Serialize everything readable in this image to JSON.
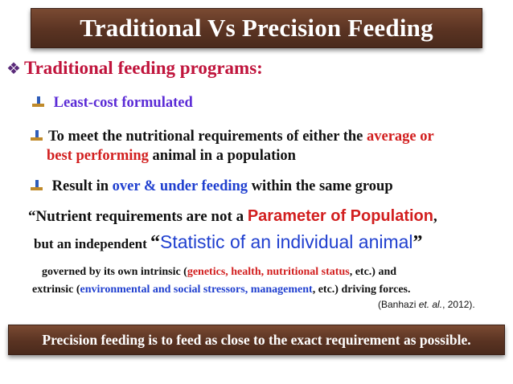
{
  "title": "Traditional Vs Precision Feeding",
  "heading": "Traditional feeding programs:",
  "bullets": {
    "b1": "Least-cost formulated",
    "b2_a": "To meet the nutritional requirements of either the ",
    "b2_red1": "average or",
    "b2_red2": "best performing",
    "b2_b": " animal in a population",
    "b3_a": "Result in ",
    "b3_blue": "over & under feeding",
    "b3_b": " within the same group"
  },
  "quote": {
    "line1_a": "“Nutrient requirements are not a ",
    "line1_red": "Parameter of Population",
    "line1_end": ",",
    "line2_a": "but an independent ",
    "line2_open": "“",
    "line2_blue": "Statistic of an individual animal",
    "line2_close": "”"
  },
  "governed": {
    "l1_a": "governed by its own intrinsic (",
    "l1_red": "genetics, health, nutritional status",
    "l1_b": ", etc.) and",
    "l2_a": "extrinsic (",
    "l2_blue": "environmental and social stressors, management",
    "l2_b": ", etc.) driving forces."
  },
  "reference": {
    "a": "(Banhazi ",
    "italic": "et. al.",
    "b": ", 2012)."
  },
  "bottom": "Precision feeding is to feed as close to the exact requirement as possible.",
  "colors": {
    "bar": "#5a3322",
    "heading": "#c0143c",
    "red": "#d21f1f",
    "blue": "#1f3fcf",
    "purple": "#5b2bd6"
  }
}
